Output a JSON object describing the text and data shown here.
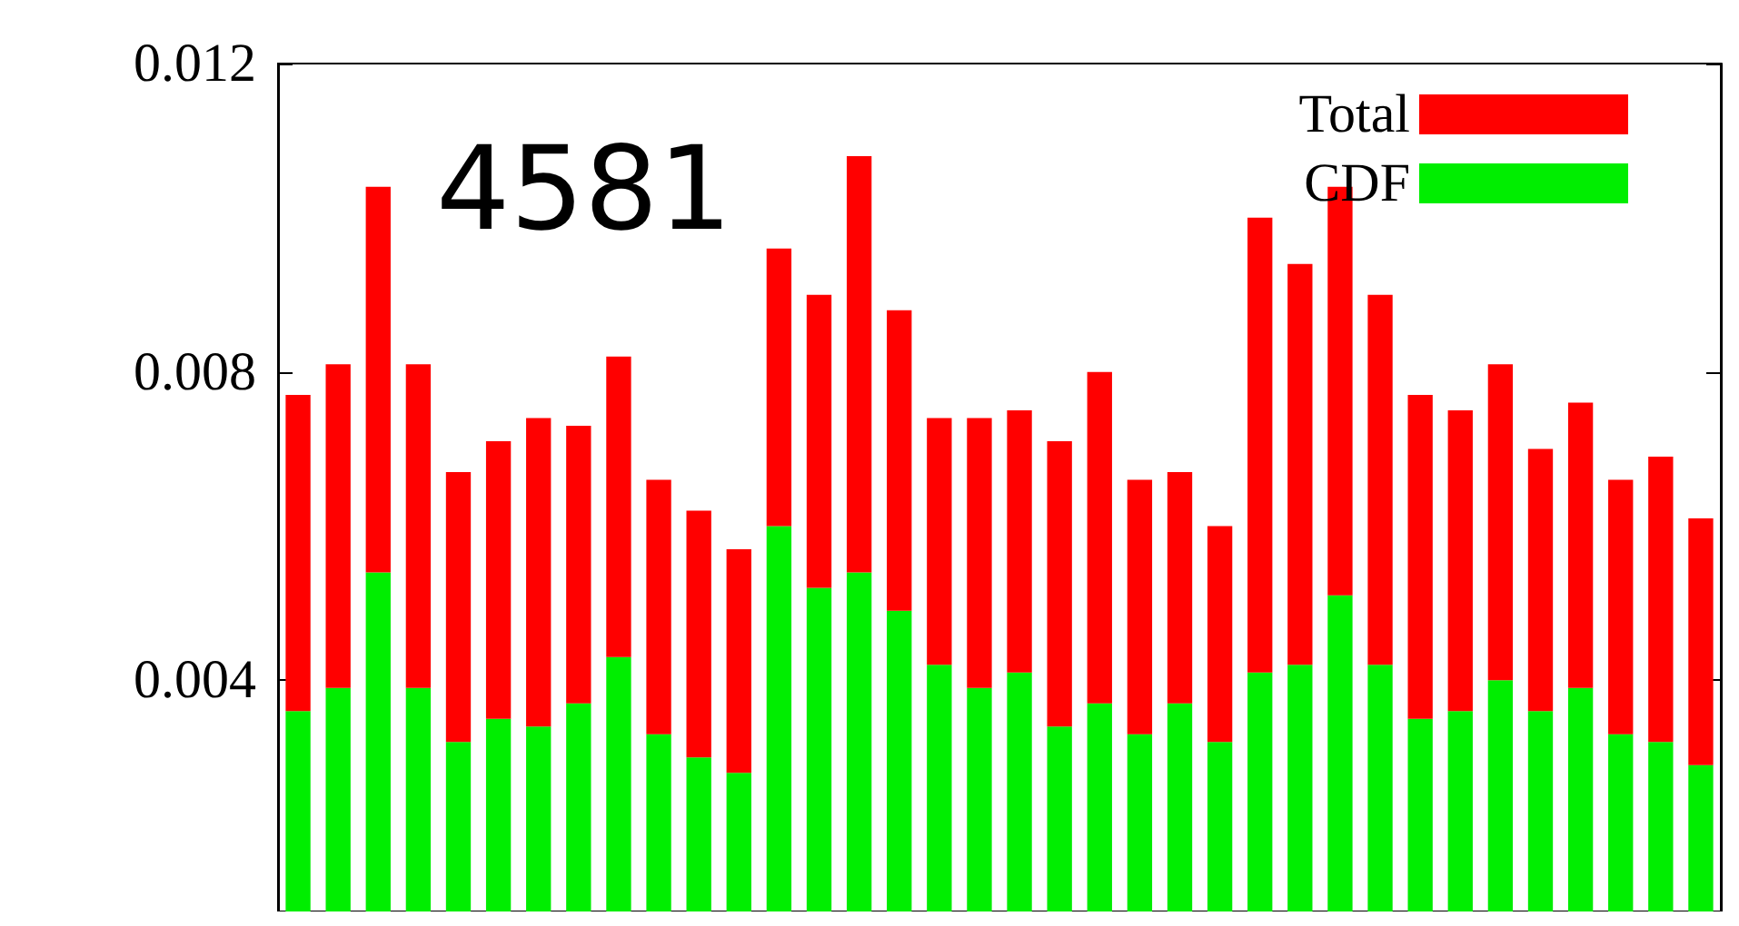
{
  "chart_data": {
    "type": "bar",
    "stacked": true,
    "categories": [
      null,
      null,
      null,
      null,
      null,
      null,
      null,
      null,
      null,
      null,
      null,
      null,
      null,
      null,
      null,
      null,
      null,
      null,
      null,
      null,
      null,
      null,
      null,
      null,
      null,
      null,
      null,
      null,
      null,
      null,
      null,
      null,
      null,
      null,
      null,
      null
    ],
    "series": [
      {
        "name": "CDF",
        "color": "#00ee00",
        "values": [
          0.0036,
          0.0039,
          0.0054,
          0.0039,
          0.0032,
          0.0035,
          0.0034,
          0.0037,
          0.0043,
          0.0033,
          0.003,
          0.0028,
          0.006,
          0.0052,
          0.0054,
          0.0049,
          0.0042,
          0.0039,
          0.0041,
          0.0034,
          0.0037,
          0.0033,
          0.0037,
          0.0032,
          0.0041,
          0.0042,
          0.0051,
          0.0042,
          0.0035,
          0.0036,
          0.004,
          0.0036,
          0.0039,
          0.0033,
          0.0032,
          0.0029
        ]
      },
      {
        "name": "Total",
        "color": "#ff0000",
        "values": [
          0.0041,
          0.0042,
          0.005,
          0.0042,
          0.0035,
          0.0036,
          0.004,
          0.0036,
          0.0039,
          0.0033,
          0.0032,
          0.0029,
          0.0036,
          0.0038,
          0.0054,
          0.0039,
          0.0032,
          0.0035,
          0.0034,
          0.0037,
          0.0043,
          0.0033,
          0.003,
          0.0028,
          0.0059,
          0.0052,
          0.0053,
          0.0048,
          0.0042,
          0.0039,
          0.0041,
          0.0034,
          0.0037,
          0.0033,
          0.0037,
          0.0032
        ]
      }
    ],
    "ylim": [
      0.001,
      0.012
    ],
    "yticks": [
      0.004,
      0.008,
      0.012
    ],
    "tick_labels": "y",
    "legend": "top right",
    "annotations": [
      "4581"
    ]
  }
}
